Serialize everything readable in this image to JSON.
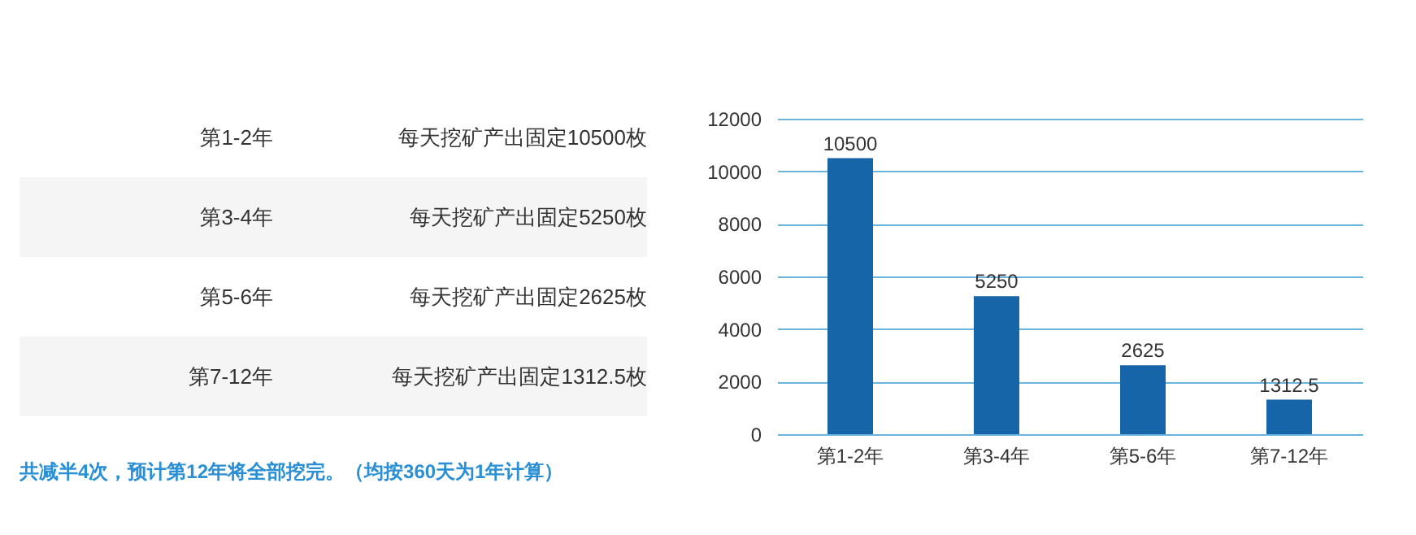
{
  "chart_data": [
    {
      "type": "other",
      "annotations": [
        "第1-2年",
        "每天挖矿产出固定10500枚",
        "第3-4年",
        "每天挖矿产出固定5250枚",
        "第5-6年",
        "每天挖矿产出固定2625枚",
        "第7-12年",
        "每天挖矿产出固定1312.5枚",
        "共减半4次，预计第12年将全部挖完。（均按360天为1年计算）"
      ]
    },
    {
      "type": "bar",
      "categories": [
        "第1-2年",
        "第3-4年",
        "第5-6年",
        "第7-12年"
      ],
      "series": [
        {
          "color": "#1565a8",
          "values": [
            10500,
            5250,
            2625,
            1312.5
          ]
        }
      ],
      "ylim": [
        0,
        12000
      ],
      "yticks": [
        0,
        2000,
        4000,
        6000,
        8000,
        10000,
        12000
      ],
      "grid": "y",
      "data_labels": true
    }
  ]
}
